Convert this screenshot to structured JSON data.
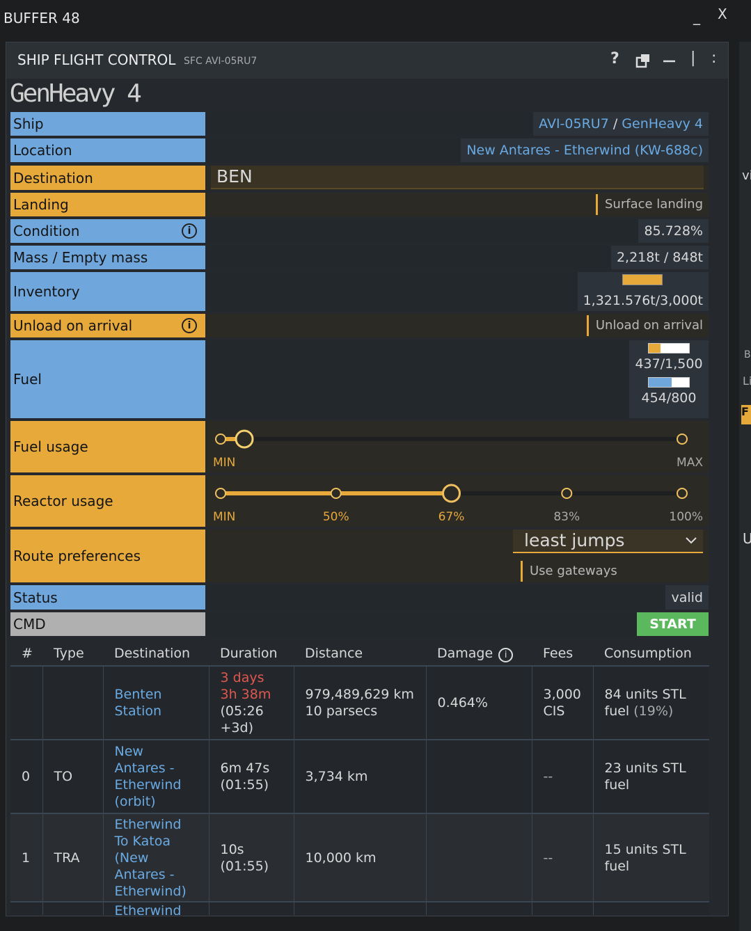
{
  "window": {
    "title": "BUFFER 48",
    "minimize": "_",
    "close": "X"
  },
  "background_fragments": [
    "vi",
    "B",
    "Li",
    "F",
    "U"
  ],
  "panel": {
    "title": "SHIP FLIGHT CONTROL",
    "command": "SFC AVI-05RU7",
    "help": "?",
    "separator": "|",
    "menu": ":"
  },
  "ship_name": "GenHeavy 4",
  "form": {
    "ship": {
      "label": "Ship",
      "registration": "AVI-05RU7",
      "divider": "/",
      "name": "GenHeavy 4"
    },
    "location": {
      "label": "Location",
      "value": "New Antares - Etherwind (KW-688c)"
    },
    "destination": {
      "label": "Destination",
      "input": "BEN"
    },
    "landing": {
      "label": "Landing",
      "toggle": "Surface landing"
    },
    "condition": {
      "label": "Condition",
      "info": "i",
      "value": "85.728%"
    },
    "mass": {
      "label": "Mass / Empty mass",
      "value": "2,218t / 848t"
    },
    "inventory": {
      "label": "Inventory",
      "value": "1,321.576t/3,000t"
    },
    "unload": {
      "label": "Unload on arrival",
      "info": "i",
      "toggle": "Unload on arrival"
    },
    "fuel": {
      "label": "Fuel",
      "stl": {
        "amount": 437,
        "capacity": 1500,
        "label": "437/1,500"
      },
      "ftl": {
        "amount": 454,
        "capacity": 800,
        "label": "454/800"
      }
    },
    "fuel_usage": {
      "label": "Fuel usage",
      "min": "MIN",
      "max": "MAX"
    },
    "reactor_usage": {
      "label": "Reactor usage",
      "stops": [
        "MIN",
        "50%",
        "67%",
        "83%",
        "100%"
      ],
      "selected": 2
    },
    "route": {
      "label": "Route preferences",
      "select": "least jumps",
      "toggle": "Use gateways"
    },
    "status": {
      "label": "Status",
      "value": "valid"
    },
    "cmd": {
      "label": "CMD",
      "button": "START"
    }
  },
  "table": {
    "headers": [
      "#",
      "Type",
      "Destination",
      "Duration",
      "Distance",
      "Damage",
      "Fees",
      "Consumption"
    ],
    "header_info": "i",
    "summary": {
      "destination": [
        "Benten",
        "Station"
      ],
      "duration": [
        "3 days",
        "3h 38m"
      ],
      "arrival": [
        "(05:26",
        "+3d)"
      ],
      "distance": [
        "979,489,629 km",
        "10 parsecs"
      ],
      "damage": [
        "0.464%"
      ],
      "fees": [
        "3,000",
        "CIS"
      ],
      "consumption": [
        "84 units STL",
        "fuel"
      ],
      "share": "(19%)"
    },
    "rows": [
      {
        "index": 0,
        "type": "TO",
        "destination": [
          "New",
          "Antares -",
          "Etherwind",
          "(orbit)"
        ],
        "duration": [
          "6m 47s",
          "(01:55)"
        ],
        "distance": [
          "3,734 km"
        ],
        "fees": [
          "--"
        ],
        "consumption": [
          "23 units STL",
          "fuel"
        ]
      },
      {
        "index": 1,
        "type": "TRA",
        "destination": [
          "Etherwind",
          "To Katoa",
          "(New",
          "Antares -",
          "Etherwind)"
        ],
        "duration": [
          "10s",
          "(01:55)"
        ],
        "distance": [
          "10,000 km"
        ],
        "fees": [
          "--"
        ],
        "consumption": [
          "15 units STL",
          "fuel"
        ]
      },
      {
        "destination": [
          "Etherwind"
        ]
      }
    ]
  }
}
